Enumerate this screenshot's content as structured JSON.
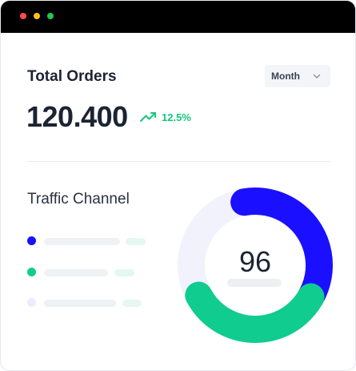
{
  "orders": {
    "title": "Total Orders",
    "period_selector": {
      "selected": "Month"
    },
    "total": "120.400",
    "change": "12.5%",
    "change_direction": "up"
  },
  "traffic": {
    "title": "Traffic Channel",
    "center_value": "96",
    "channels": [
      {
        "color": "#1a10ff"
      },
      {
        "color": "#10cc8f"
      },
      {
        "color": "#ecebff"
      }
    ],
    "donut_segments": [
      {
        "color": "#1a10ff",
        "fraction": 0.36
      },
      {
        "color": "#10cc8f",
        "fraction": 0.34
      },
      {
        "color": "#f2f2fd",
        "fraction": 0.3
      }
    ]
  },
  "colors": {
    "accent_blue": "#1a10ff",
    "accent_green": "#10cc8f",
    "trend_green": "#14c77e"
  }
}
